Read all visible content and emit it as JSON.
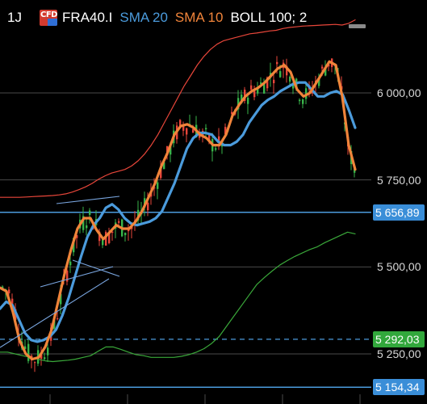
{
  "header": {
    "timeframe": "1J",
    "cfd_badge": "CFD",
    "symbol": "FRA40.I",
    "sma20_label": "SMA 20",
    "sma10_label": "SMA 10",
    "boll_label": "BOLL 100; 2"
  },
  "colors": {
    "background": "#000000",
    "sma20": "#4b9bdc",
    "sma10": "#f0843a",
    "boll_upper": "#e8463a",
    "boll_lower": "#3aa83a",
    "candle_up": "#39b54a",
    "candle_down": "#e8463a",
    "grid": "#4a4a4a",
    "horizontal_line": "#4b9bdc",
    "trendline": "#7aa6e0"
  },
  "toolbar": {
    "minimize_icon": "minimize-bar-icon"
  },
  "price_axis": {
    "labels": [
      "6 000,00",
      "5 750,00",
      "5 500,00",
      "5 250,00"
    ],
    "values": [
      6000,
      5750,
      5500,
      5250
    ]
  },
  "price_tags": [
    {
      "label": "5 656,89",
      "value": 5656.89,
      "color": "blue"
    },
    {
      "label": "5 292,03",
      "value": 5292.03,
      "color": "green"
    },
    {
      "label": "5 154,34",
      "value": 5154.34,
      "color": "blue"
    }
  ],
  "chart_data": {
    "type": "candlestick",
    "title": "",
    "ylim": [
      5140,
      6200
    ],
    "horizontal_lines": [
      5656.89,
      5154.34
    ],
    "dashed_line": 5292.03,
    "series_sma20": [
      5380,
      5400,
      5390,
      5350,
      5310,
      5290,
      5285,
      5290,
      5300,
      5320,
      5360,
      5410,
      5470,
      5530,
      5585,
      5620,
      5640,
      5670,
      5680,
      5665,
      5640,
      5625,
      5620,
      5625,
      5630,
      5640,
      5660,
      5700,
      5740,
      5790,
      5840,
      5870,
      5885,
      5885,
      5880,
      5860,
      5850,
      5850,
      5860,
      5880,
      5915,
      5940,
      5965,
      5980,
      5990,
      6005,
      6015,
      6025,
      6030,
      6030,
      6010,
      5990,
      5990,
      6000,
      6005,
      5995,
      5950,
      5900
    ],
    "series_sma10": [
      5440,
      5430,
      5370,
      5290,
      5250,
      5235,
      5240,
      5270,
      5320,
      5400,
      5480,
      5550,
      5610,
      5640,
      5640,
      5605,
      5580,
      5600,
      5620,
      5610,
      5610,
      5630,
      5660,
      5700,
      5740,
      5790,
      5830,
      5880,
      5905,
      5910,
      5900,
      5880,
      5870,
      5850,
      5850,
      5880,
      5935,
      5965,
      5990,
      6005,
      6015,
      6030,
      6050,
      6070,
      6080,
      6060,
      6010,
      5990,
      6000,
      6030,
      6060,
      6090,
      6080,
      5990,
      5850,
      5780
    ],
    "series_boll_upper": [
      5700,
      5700,
      5700,
      5700,
      5701,
      5702,
      5703,
      5704,
      5705,
      5707,
      5710,
      5715,
      5722,
      5730,
      5740,
      5752,
      5762,
      5770,
      5775,
      5780,
      5790,
      5805,
      5825,
      5850,
      5880,
      5915,
      5950,
      5985,
      6020,
      6050,
      6080,
      6105,
      6125,
      6140,
      6150,
      6155,
      6160,
      6165,
      6170,
      6172,
      6175,
      6178,
      6180,
      6185,
      6188,
      6190,
      6192,
      6193,
      6194,
      6195,
      6196,
      6197,
      6195,
      6200,
      6210
    ],
    "series_boll_lower": [
      5255,
      5255,
      5250,
      5245,
      5240,
      5235,
      5230,
      5228,
      5230,
      5232,
      5235,
      5240,
      5245,
      5258,
      5270,
      5270,
      5263,
      5255,
      5248,
      5245,
      5240,
      5240,
      5240,
      5240,
      5243,
      5248,
      5255,
      5265,
      5280,
      5300,
      5330,
      5360,
      5390,
      5420,
      5450,
      5470,
      5488,
      5505,
      5518,
      5530,
      5540,
      5550,
      5558,
      5570,
      5580,
      5590,
      5600,
      5595
    ]
  }
}
